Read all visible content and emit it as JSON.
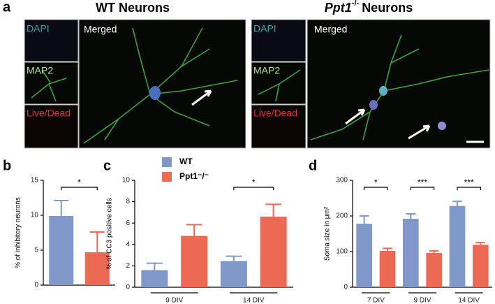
{
  "panel_a": {
    "label": "a",
    "left_title": "WT Neurons",
    "right_title": {
      "gene": "Ppt1",
      "sup": "-/-",
      "text": "Neurons"
    },
    "left_images": {
      "dapi": "DAPI",
      "map2": "MAP2",
      "live_dead": "Live/Dead",
      "merged": "Merged"
    },
    "right_images": {
      "dapi": "DAPI",
      "map2": "MAP2",
      "live_dead": "Live/Dead",
      "merged": "Merged"
    }
  },
  "chart_data": [
    {
      "type": "bar",
      "panel": "b",
      "ylabel": "% of inhibitory neurons",
      "categories": [
        null
      ],
      "ylim": [
        0,
        15
      ],
      "yticks": [
        0,
        5,
        10,
        15
      ],
      "series": [
        {
          "color": "#7f98c9",
          "values": [
            9.9
          ],
          "errors": [
            2.2
          ]
        },
        {
          "color": "#ec6a53",
          "values": [
            4.7
          ],
          "errors": [
            2.9
          ]
        }
      ],
      "significance": [
        "*"
      ]
    },
    {
      "type": "bar",
      "panel": "c",
      "ylabel": "% of CC3 positive cells",
      "categories": [
        "9  DIV",
        "14  DIV"
      ],
      "ylim": [
        0,
        10
      ],
      "yticks": [
        0,
        2,
        4,
        6,
        8,
        10
      ],
      "series": [
        {
          "name": "WT",
          "color": "#7f98c9",
          "values": [
            1.6,
            2.45
          ],
          "errors": [
            0.65,
            0.45
          ]
        },
        {
          "name": "Ppt1⁻/⁻",
          "color": "#ec6a53",
          "values": [
            4.8,
            6.6
          ],
          "errors": [
            1.05,
            1.15
          ]
        }
      ],
      "significance": [
        null,
        "*"
      ]
    },
    {
      "type": "bar",
      "panel": "d",
      "ylabel": "Soma size in μm²",
      "categories": [
        "7 DIV",
        "9 DIV",
        "14 DIV"
      ],
      "ylim": [
        0,
        300
      ],
      "yticks": [
        0,
        100,
        200,
        300
      ],
      "series": [
        {
          "color": "#7f98c9",
          "values": [
            178,
            192,
            228
          ],
          "errors": [
            22,
            14,
            13
          ]
        },
        {
          "color": "#ec6a53",
          "values": [
            102,
            96,
            119
          ],
          "errors": [
            7,
            6,
            6
          ]
        }
      ],
      "significance": [
        "*",
        "***",
        "***"
      ]
    }
  ]
}
